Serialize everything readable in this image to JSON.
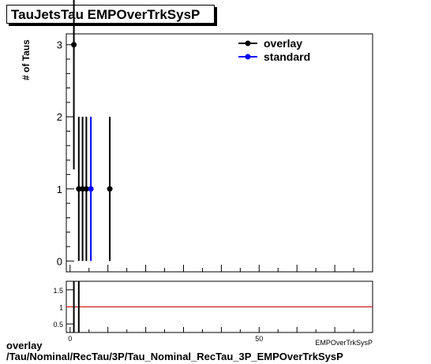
{
  "title": "TauJetsTau EMPOverTrkSysP",
  "footer": {
    "line1": "overlay",
    "line2": "/Tau/Nominal/RecTau/3P/Tau_Nominal_RecTau_3P_EMPOverTrkSysP"
  },
  "colors": {
    "overlay": "#000000",
    "standard": "#0000ff",
    "ratio_line": "#cc0000"
  },
  "chart_data": [
    {
      "type": "scatter",
      "panel": "main",
      "ylabel": "# of Taus",
      "xlabel": "",
      "xlim": [
        -1,
        80
      ],
      "ylim": [
        -0.15,
        3.15
      ],
      "yticks": [
        0,
        1,
        2,
        3
      ],
      "xticks": [
        0,
        50
      ],
      "legend_position": "top-right",
      "series": [
        {
          "name": "overlay",
          "points": [
            {
              "x": 1,
              "y": 3,
              "err": 1.73
            },
            {
              "x": 2.3,
              "y": 1,
              "err": 1
            },
            {
              "x": 3.3,
              "y": 1,
              "err": 1
            },
            {
              "x": 4.3,
              "y": 1,
              "err": 1
            },
            {
              "x": 10.5,
              "y": 1,
              "err": 1
            }
          ]
        },
        {
          "name": "standard",
          "points": [
            {
              "x": 5.5,
              "y": 1,
              "err": 1
            }
          ]
        }
      ]
    },
    {
      "type": "line",
      "panel": "ratio",
      "xlabel": "EMPOverTrkSysP",
      "xlim": [
        -1,
        80
      ],
      "ylim": [
        0.25,
        1.75
      ],
      "yticks": [
        0.5,
        1,
        1.5
      ],
      "yticklabels": [
        "0.5",
        "1",
        "1.5"
      ],
      "xticks": [
        0,
        50
      ],
      "reference": 1,
      "error_bars": [
        {
          "x": 1,
          "y": 1,
          "err": 1.2
        },
        {
          "x": 2.3,
          "y": 1,
          "err": 1.2
        }
      ]
    }
  ]
}
